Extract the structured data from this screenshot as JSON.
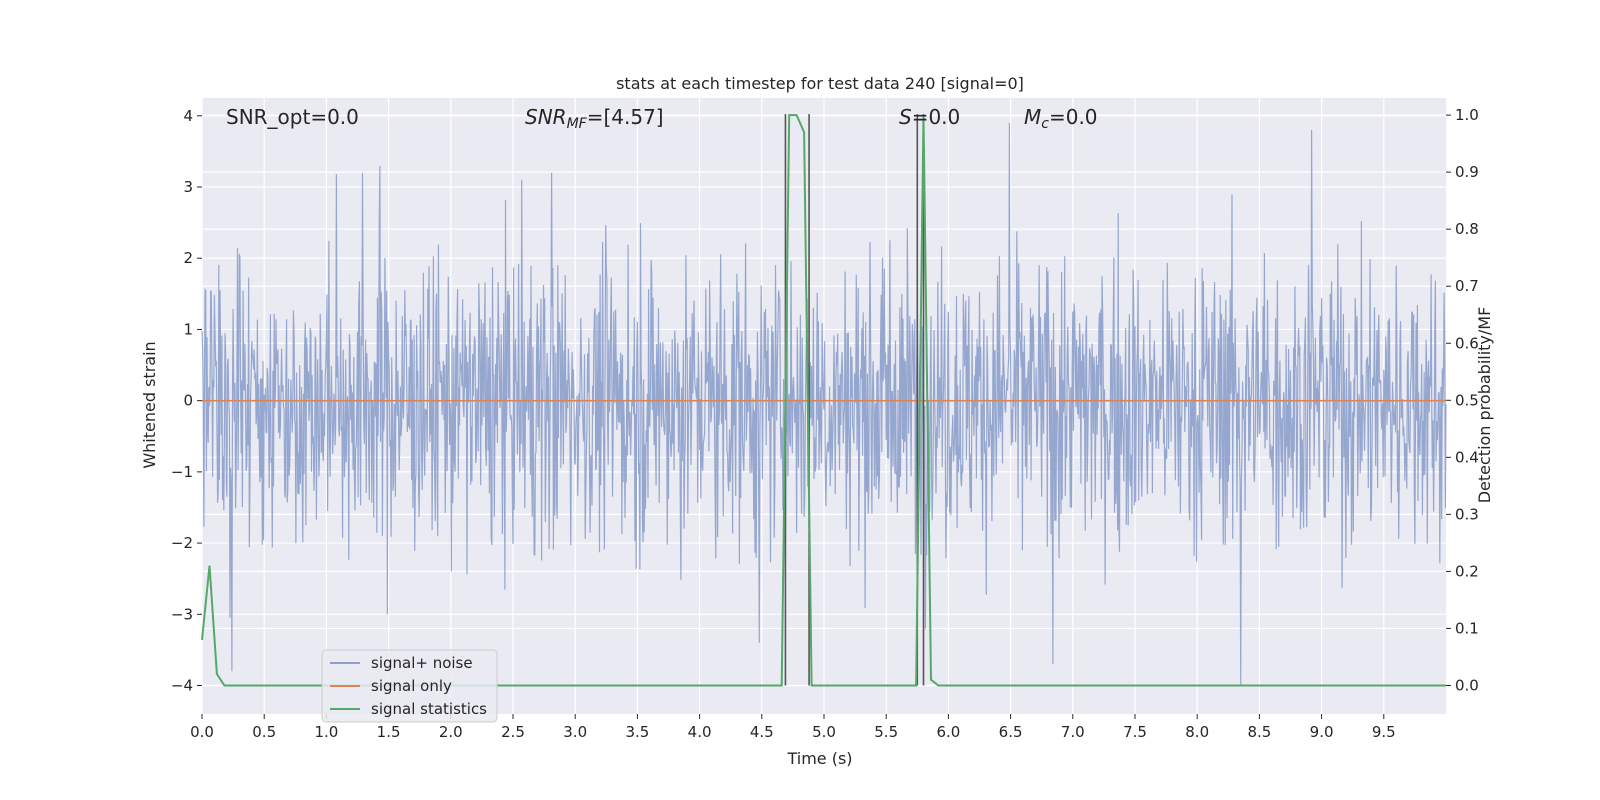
{
  "chart_data": {
    "type": "line",
    "title": "stats at each timestep for test data 240 [signal=0]",
    "xlabel": "Time (s)",
    "ylabel_left": "Whitened strain",
    "ylabel_right": "Detection probability/MF",
    "xlim": [
      0.0,
      10.0
    ],
    "ylim_left": [
      -4.4,
      4.25
    ],
    "ylim_right": [
      -0.05,
      1.03
    ],
    "x_ticks": [
      "0.0",
      "0.5",
      "1.0",
      "1.5",
      "2.0",
      "2.5",
      "3.0",
      "3.5",
      "4.0",
      "4.5",
      "5.0",
      "5.5",
      "6.0",
      "6.5",
      "7.0",
      "7.5",
      "8.0",
      "8.5",
      "9.0",
      "9.5"
    ],
    "y_ticks_left": [
      "4",
      "3",
      "2",
      "1",
      "0",
      "−1",
      "−2",
      "−3",
      "−4"
    ],
    "y_ticks_right": [
      "1.0",
      "0.9",
      "0.8",
      "0.7",
      "0.6",
      "0.5",
      "0.4",
      "0.3",
      "0.2",
      "0.1",
      "0.0"
    ],
    "grid": true,
    "legend_position": "lower-left",
    "annotations": {
      "snr_opt": "SNR_opt=0.0",
      "snr_mf_main": "SNR",
      "snr_mf_sub": "MF",
      "snr_mf_value": "=[4.57]",
      "s_var": "S",
      "s_value": "=0.0",
      "mc_var": "M",
      "mc_sub": "c",
      "mc_value": "=0.0"
    },
    "series": [
      {
        "name": "signal+ noise",
        "axis": "left",
        "color": "#8da0cb",
        "description_values": "whitened noise, approx. Gaussian, std ~1, range about -4.0 to 3.9 over 0-10 s",
        "sample_rate_hz": 200,
        "peaks": [
          [
            1.43,
            3.3
          ],
          [
            1.29,
            3.2
          ],
          [
            2.57,
            3.1
          ],
          [
            2.81,
            3.2
          ],
          [
            6.49,
            3.9
          ],
          [
            8.92,
            3.8
          ],
          [
            8.35,
            -4.0
          ],
          [
            6.84,
            -3.7
          ],
          [
            4.48,
            -3.4
          ],
          [
            0.24,
            -3.8
          ]
        ]
      },
      {
        "name": "signal only",
        "axis": "left",
        "color": "#dd8452",
        "x": [
          0.0,
          10.0
        ],
        "y": [
          0.0,
          0.0
        ]
      },
      {
        "name": "signal statistics",
        "axis": "right",
        "color": "#55a868",
        "x": [
          0.0,
          0.06,
          0.12,
          0.18,
          0.24,
          4.66,
          4.72,
          4.78,
          4.84,
          4.9,
          4.96,
          5.74,
          5.8,
          5.86,
          5.92,
          10.0
        ],
        "y": [
          0.08,
          0.21,
          0.02,
          0.0,
          0.0,
          0.0,
          1.0,
          1.0,
          0.97,
          0.0,
          0.0,
          0.0,
          1.0,
          0.01,
          0.0,
          0.0
        ]
      }
    ],
    "vertical_lines": {
      "color": "#555555",
      "x": [
        4.69,
        4.88,
        5.75,
        5.8
      ],
      "y_top_right": 1.0
    }
  }
}
